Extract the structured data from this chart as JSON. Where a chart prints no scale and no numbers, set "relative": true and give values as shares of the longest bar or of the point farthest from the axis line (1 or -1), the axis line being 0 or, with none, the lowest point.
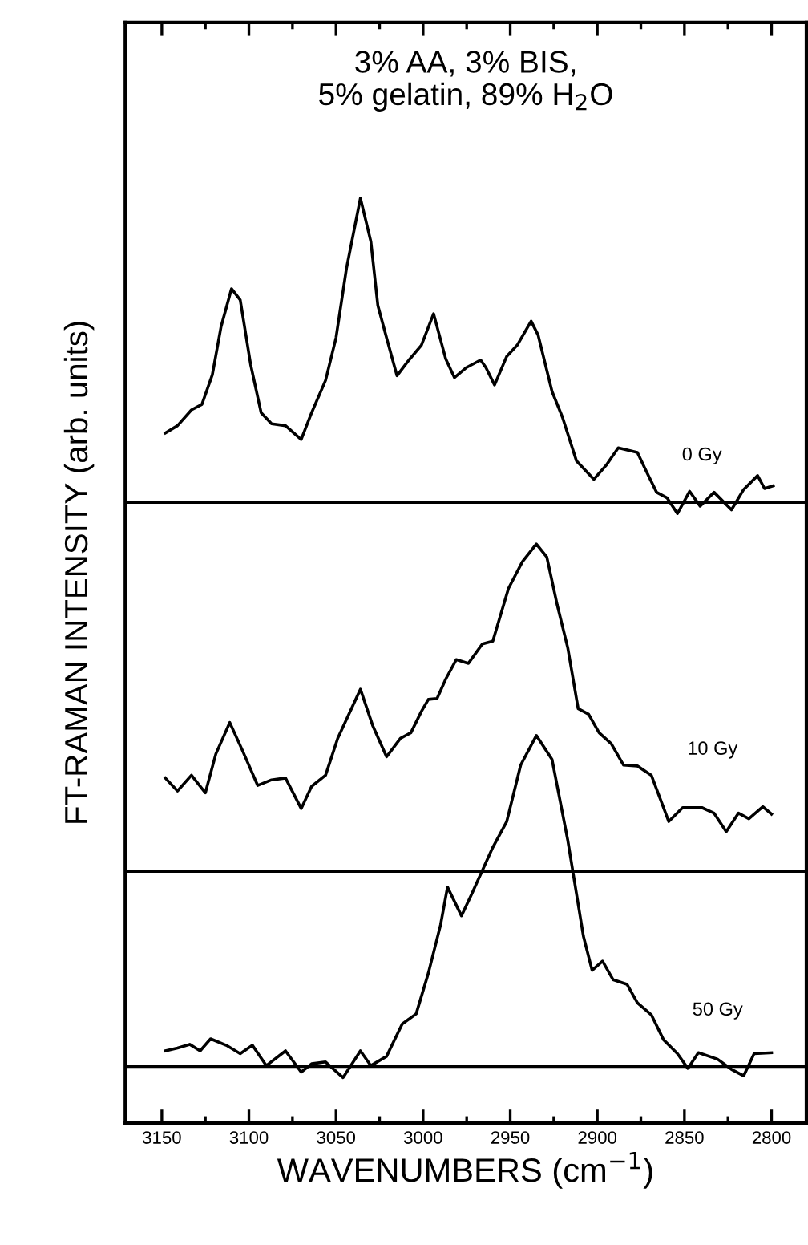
{
  "chart_data": {
    "type": "line",
    "relative": true,
    "title": "3% AA, 3% BIS,\n5% gelatin, 89% H$_{2}$O",
    "xlabel": "WAVENUMBERS (cm$^{−1}$)",
    "ylabel": "FT-RAMAN INTENSITY (arb. units)",
    "xlim": [
      3171,
      2780
    ],
    "xticks": [
      3150,
      {
        "value": 3125,
        "label": null
      },
      3100,
      {
        "value": 3075,
        "label": null
      },
      3050,
      {
        "value": 3025,
        "label": null
      },
      3000,
      {
        "value": 2975,
        "label": null
      },
      2950,
      {
        "value": 2925,
        "label": null
      },
      2900,
      {
        "value": 2875,
        "label": null
      },
      2850,
      {
        "value": 2825,
        "label": null
      },
      2800
    ],
    "tick_labels": "x",
    "grid": false,
    "legend": false,
    "marker": "none",
    "line_style": "solid",
    "series": [
      {
        "name": "0 Gy",
        "color": "#000000",
        "x": [
          3148,
          3141,
          3133,
          3127,
          3121,
          3116,
          3110,
          3105,
          3099,
          3093,
          3087,
          3079,
          3070,
          3064,
          3056,
          3050,
          3044,
          3036,
          3030,
          3026,
          3021,
          3015,
          3009,
          3001,
          2994,
          2987,
          2982,
          2975,
          2967,
          2964,
          2959,
          2952,
          2946,
          2938,
          2934,
          2926,
          2920,
          2912,
          2902,
          2895,
          2888,
          2877,
          2872,
          2866,
          2860,
          2854,
          2847,
          2841,
          2833,
          2823,
          2816,
          2808,
          2804,
          2799
        ],
        "values": [
          0.746,
          0.754,
          0.771,
          0.777,
          0.809,
          0.861,
          0.902,
          0.89,
          0.82,
          0.768,
          0.756,
          0.754,
          0.739,
          0.768,
          0.803,
          0.849,
          0.924,
          1.0,
          0.953,
          0.884,
          0.849,
          0.808,
          0.823,
          0.841,
          0.875,
          0.826,
          0.806,
          0.817,
          0.825,
          0.817,
          0.798,
          0.829,
          0.841,
          0.867,
          0.852,
          0.791,
          0.763,
          0.716,
          0.696,
          0.711,
          0.73,
          0.725,
          0.705,
          0.682,
          0.676,
          0.659,
          0.683,
          0.667,
          0.682,
          0.663,
          0.685,
          0.7,
          0.686,
          0.689
        ]
      },
      {
        "name": "10 Gy",
        "color": "#000000",
        "x": [
          3148,
          3141,
          3133,
          3125,
          3119,
          3111,
          3104,
          3095,
          3087,
          3079,
          3070,
          3064,
          3056,
          3049,
          3036,
          3029,
          3021,
          3013,
          3007,
          3001,
          2997,
          2992,
          2987,
          2981,
          2974,
          2966,
          2960,
          2951,
          2943,
          2935,
          2929,
          2923,
          2917,
          2911,
          2905,
          2899,
          2892,
          2885,
          2877,
          2869,
          2859,
          2851,
          2840,
          2833,
          2826,
          2819,
          2813,
          2805,
          2800
        ],
        "values": [
          0.373,
          0.359,
          0.376,
          0.357,
          0.399,
          0.433,
          0.404,
          0.365,
          0.371,
          0.373,
          0.34,
          0.364,
          0.376,
          0.416,
          0.469,
          0.43,
          0.396,
          0.416,
          0.422,
          0.445,
          0.458,
          0.459,
          0.48,
          0.501,
          0.497,
          0.518,
          0.521,
          0.578,
          0.607,
          0.626,
          0.612,
          0.56,
          0.514,
          0.448,
          0.442,
          0.422,
          0.41,
          0.387,
          0.386,
          0.376,
          0.326,
          0.341,
          0.341,
          0.335,
          0.315,
          0.335,
          0.329,
          0.342,
          0.334
        ]
      },
      {
        "name": "50 Gy",
        "color": "#000000",
        "x": [
          3148,
          3141,
          3134,
          3128,
          3122,
          3113,
          3105,
          3098,
          3090,
          3079,
          3070,
          3064,
          3056,
          3046,
          3036,
          3030,
          3021,
          3012,
          3004,
          2997,
          2990,
          2986,
          2978,
          2972,
          2960,
          2952,
          2944,
          2935,
          2926,
          2917,
          2908,
          2903,
          2897,
          2891,
          2883,
          2877,
          2869,
          2862,
          2854,
          2848,
          2842,
          2831,
          2823,
          2816,
          2810,
          2800
        ],
        "values": [
          0.078,
          0.081,
          0.085,
          0.078,
          0.091,
          0.084,
          0.075,
          0.084,
          0.062,
          0.078,
          0.055,
          0.064,
          0.066,
          0.049,
          0.078,
          0.062,
          0.072,
          0.107,
          0.118,
          0.162,
          0.214,
          0.255,
          0.224,
          0.248,
          0.298,
          0.326,
          0.387,
          0.419,
          0.393,
          0.306,
          0.202,
          0.165,
          0.175,
          0.155,
          0.15,
          0.13,
          0.117,
          0.09,
          0.075,
          0.059,
          0.076,
          0.069,
          0.058,
          0.051,
          0.075,
          0.076
        ]
      }
    ],
    "ref_lines": [
      {
        "axis": "y",
        "value": 0.671,
        "color": "#000000"
      },
      {
        "axis": "y",
        "value": 0.272,
        "color": "#000000"
      },
      {
        "axis": "y",
        "value": 0.061,
        "color": "#000000"
      }
    ]
  }
}
